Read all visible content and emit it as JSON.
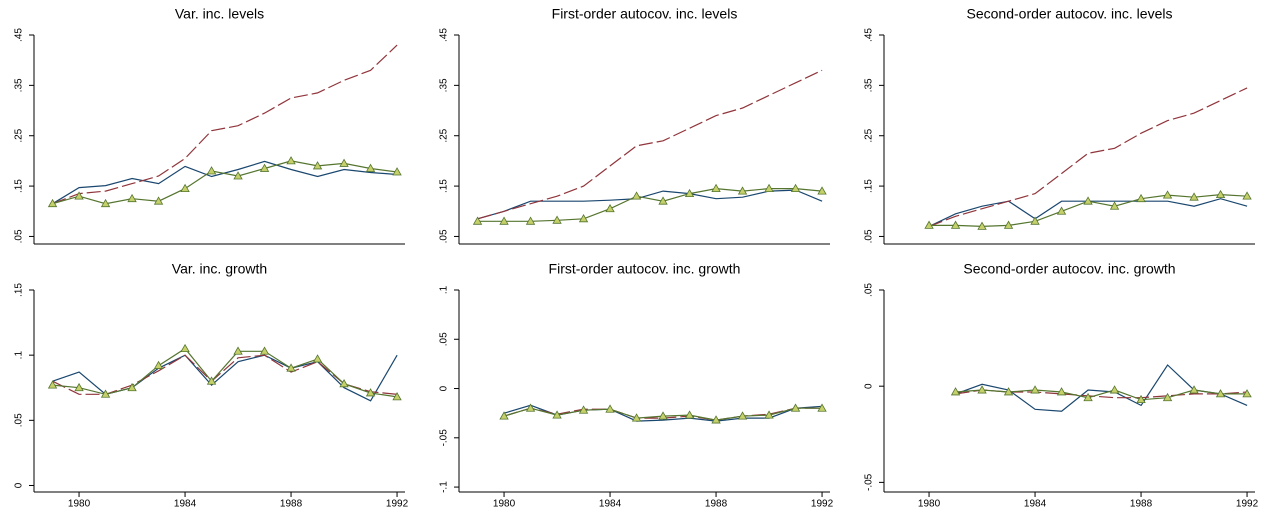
{
  "chart_data": [
    {
      "type": "line",
      "title": "Var. inc. levels",
      "x": [
        1979,
        1980,
        1981,
        1982,
        1983,
        1984,
        1985,
        1986,
        1987,
        1988,
        1989,
        1990,
        1991,
        1992
      ],
      "xlim": [
        1978.3,
        1992.3
      ],
      "ylim": [
        0.035,
        0.45
      ],
      "yticks": [
        {
          "value": 0.05,
          "label": ".05"
        },
        {
          "value": 0.15,
          "label": ".15"
        },
        {
          "value": 0.25,
          "label": ".25"
        },
        {
          "value": 0.35,
          "label": ".35"
        },
        {
          "value": 0.45,
          "label": ".45"
        }
      ],
      "series": [
        {
          "color": "#1a476f",
          "dash": "none",
          "marker": "none",
          "values": [
            0.115,
            0.147,
            0.151,
            0.165,
            0.155,
            0.189,
            0.169,
            0.183,
            0.199,
            0.183,
            0.169,
            0.183,
            0.177,
            0.173
          ]
        },
        {
          "color": "#90353b",
          "dash": "long",
          "marker": "none",
          "values": [
            0.115,
            0.135,
            0.14,
            0.155,
            0.17,
            0.205,
            0.26,
            0.27,
            0.295,
            0.325,
            0.335,
            0.36,
            0.38,
            0.43
          ]
        },
        {
          "color": "#55752f",
          "dash": "none",
          "marker": "triangle",
          "values": [
            0.115,
            0.13,
            0.115,
            0.125,
            0.12,
            0.145,
            0.18,
            0.17,
            0.185,
            0.2,
            0.19,
            0.195,
            0.185,
            0.178
          ]
        }
      ]
    },
    {
      "type": "line",
      "title": "First-order autocov. inc. levels",
      "x": [
        1979,
        1980,
        1981,
        1982,
        1983,
        1984,
        1985,
        1986,
        1987,
        1988,
        1989,
        1990,
        1991,
        1992
      ],
      "xlim": [
        1978.3,
        1992.3
      ],
      "ylim": [
        0.035,
        0.45
      ],
      "yticks": [
        {
          "value": 0.05,
          "label": ".05"
        },
        {
          "value": 0.15,
          "label": ".15"
        },
        {
          "value": 0.25,
          "label": ".25"
        },
        {
          "value": 0.35,
          "label": ".35"
        },
        {
          "value": 0.45,
          "label": ".45"
        }
      ],
      "series": [
        {
          "color": "#1a476f",
          "dash": "none",
          "marker": "none",
          "values": [
            0.085,
            0.1,
            0.12,
            0.12,
            0.12,
            0.122,
            0.125,
            0.14,
            0.135,
            0.125,
            0.128,
            0.14,
            0.142,
            0.12
          ]
        },
        {
          "color": "#90353b",
          "dash": "long",
          "marker": "none",
          "values": [
            0.085,
            0.1,
            0.115,
            0.13,
            0.15,
            0.19,
            0.23,
            0.24,
            0.265,
            0.29,
            0.305,
            0.33,
            0.355,
            0.38
          ]
        },
        {
          "color": "#55752f",
          "dash": "none",
          "marker": "triangle",
          "values": [
            0.08,
            0.08,
            0.08,
            0.082,
            0.085,
            0.105,
            0.13,
            0.12,
            0.135,
            0.145,
            0.14,
            0.145,
            0.145,
            0.14
          ]
        }
      ]
    },
    {
      "type": "line",
      "title": "Second-order autocov. inc. levels",
      "x": [
        1980,
        1981,
        1982,
        1983,
        1984,
        1985,
        1986,
        1987,
        1988,
        1989,
        1990,
        1991,
        1992
      ],
      "xlim": [
        1978.3,
        1992.3
      ],
      "ylim": [
        0.035,
        0.45
      ],
      "yticks": [
        {
          "value": 0.05,
          "label": ".05"
        },
        {
          "value": 0.15,
          "label": ".15"
        },
        {
          "value": 0.25,
          "label": ".25"
        },
        {
          "value": 0.35,
          "label": ".35"
        },
        {
          "value": 0.45,
          "label": ".45"
        }
      ],
      "series": [
        {
          "color": "#1a476f",
          "dash": "none",
          "marker": "none",
          "values": [
            0.07,
            0.095,
            0.11,
            0.12,
            0.085,
            0.12,
            0.12,
            0.12,
            0.12,
            0.12,
            0.11,
            0.125,
            0.11
          ]
        },
        {
          "color": "#90353b",
          "dash": "long",
          "marker": "none",
          "values": [
            0.07,
            0.09,
            0.105,
            0.12,
            0.135,
            0.175,
            0.215,
            0.225,
            0.255,
            0.28,
            0.295,
            0.32,
            0.345
          ]
        },
        {
          "color": "#55752f",
          "dash": "none",
          "marker": "triangle",
          "values": [
            0.072,
            0.072,
            0.07,
            0.072,
            0.08,
            0.1,
            0.12,
            0.11,
            0.125,
            0.132,
            0.128,
            0.133,
            0.13
          ]
        }
      ]
    },
    {
      "type": "line",
      "title": "Var. inc. growth",
      "x": [
        1979,
        1980,
        1981,
        1982,
        1983,
        1984,
        1985,
        1986,
        1987,
        1988,
        1989,
        1990,
        1991,
        1992
      ],
      "xlim": [
        1978.3,
        1992.3
      ],
      "ylim": [
        -0.005,
        0.15
      ],
      "xticks": [
        1980,
        1984,
        1988,
        1992
      ],
      "yticks": [
        0,
        {
          "value": 0.05,
          "label": ".05"
        },
        {
          "value": 0.1,
          "label": ".1"
        },
        {
          "value": 0.15,
          "label": ".15"
        }
      ],
      "series": [
        {
          "color": "#1a476f",
          "dash": "none",
          "marker": "none",
          "values": [
            0.08,
            0.087,
            0.07,
            0.075,
            0.09,
            0.1,
            0.077,
            0.095,
            0.1,
            0.09,
            0.095,
            0.075,
            0.065,
            0.1
          ]
        },
        {
          "color": "#90353b",
          "dash": "long",
          "marker": "none",
          "values": [
            0.08,
            0.07,
            0.07,
            0.077,
            0.088,
            0.1,
            0.08,
            0.098,
            0.1,
            0.087,
            0.095,
            0.078,
            0.072,
            0.07
          ]
        },
        {
          "color": "#55752f",
          "dash": "none",
          "marker": "triangle",
          "values": [
            0.077,
            0.075,
            0.07,
            0.075,
            0.092,
            0.105,
            0.08,
            0.103,
            0.103,
            0.09,
            0.097,
            0.078,
            0.071,
            0.068
          ]
        }
      ]
    },
    {
      "type": "line",
      "title": "First-order autocov. inc. growth",
      "x": [
        1980,
        1981,
        1982,
        1983,
        1984,
        1985,
        1986,
        1987,
        1988,
        1989,
        1990,
        1991,
        1992
      ],
      "xlim": [
        1978.3,
        1992.3
      ],
      "ylim": [
        -0.105,
        0.1
      ],
      "xticks": [
        1980,
        1984,
        1988,
        1992
      ],
      "yticks": [
        {
          "value": -0.1,
          "label": "-.1"
        },
        {
          "value": -0.05,
          "label": "-.05"
        },
        0,
        {
          "value": 0.05,
          "label": ".05"
        },
        {
          "value": 0.1,
          "label": ".1"
        }
      ],
      "series": [
        {
          "color": "#1a476f",
          "dash": "none",
          "marker": "none",
          "values": [
            -0.025,
            -0.017,
            -0.027,
            -0.022,
            -0.021,
            -0.033,
            -0.032,
            -0.03,
            -0.033,
            -0.03,
            -0.03,
            -0.02,
            -0.018
          ]
        },
        {
          "color": "#90353b",
          "dash": "long",
          "marker": "none",
          "values": [
            -0.028,
            -0.02,
            -0.026,
            -0.021,
            -0.021,
            -0.03,
            -0.03,
            -0.028,
            -0.032,
            -0.028,
            -0.026,
            -0.02,
            -0.02
          ]
        },
        {
          "color": "#55752f",
          "dash": "none",
          "marker": "triangle",
          "values": [
            -0.028,
            -0.02,
            -0.027,
            -0.022,
            -0.021,
            -0.03,
            -0.028,
            -0.027,
            -0.032,
            -0.028,
            -0.027,
            -0.02,
            -0.02
          ]
        }
      ]
    },
    {
      "type": "line",
      "title": "Second-order autocov. inc. growth",
      "x": [
        1981,
        1982,
        1983,
        1984,
        1985,
        1986,
        1987,
        1988,
        1989,
        1990,
        1991,
        1992
      ],
      "xlim": [
        1978.3,
        1992.3
      ],
      "ylim": [
        -0.055,
        0.05
      ],
      "xticks": [
        1980,
        1984,
        1988,
        1992
      ],
      "yticks": [
        {
          "value": -0.05,
          "label": "-.05"
        },
        0,
        {
          "value": 0.05,
          "label": ".05"
        }
      ],
      "series": [
        {
          "color": "#1a476f",
          "dash": "none",
          "marker": "none",
          "values": [
            -0.004,
            0.001,
            -0.002,
            -0.012,
            -0.013,
            -0.002,
            -0.003,
            -0.01,
            0.011,
            -0.002,
            -0.004,
            -0.01
          ]
        },
        {
          "color": "#90353b",
          "dash": "long",
          "marker": "none",
          "values": [
            -0.004,
            -0.002,
            -0.003,
            -0.003,
            -0.004,
            -0.005,
            -0.006,
            -0.006,
            -0.005,
            -0.004,
            -0.004,
            -0.003
          ]
        },
        {
          "color": "#55752f",
          "dash": "none",
          "marker": "triangle",
          "values": [
            -0.003,
            -0.002,
            -0.003,
            -0.002,
            -0.003,
            -0.006,
            -0.002,
            -0.007,
            -0.006,
            -0.002,
            -0.004,
            -0.004
          ]
        }
      ]
    }
  ]
}
